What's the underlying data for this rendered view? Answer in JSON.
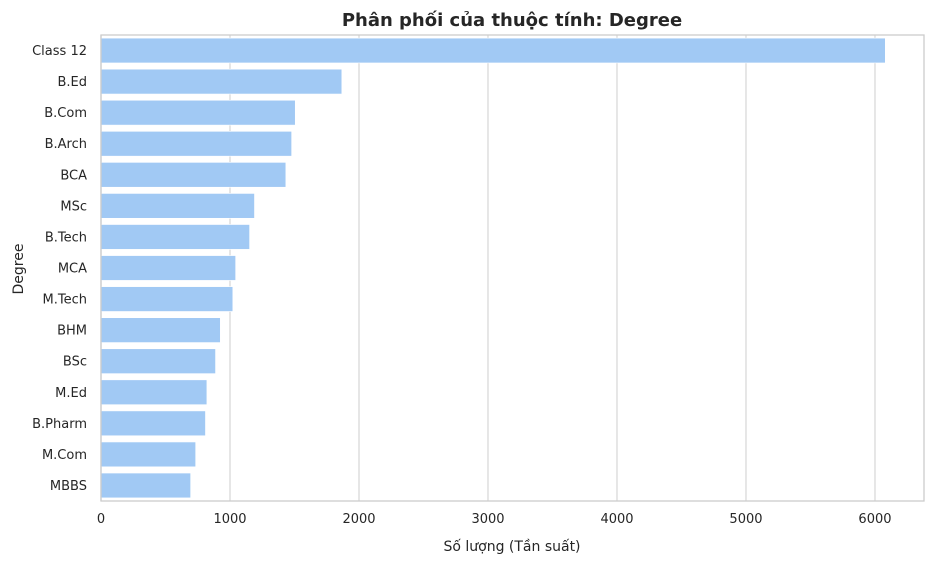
{
  "chart_data": {
    "type": "bar",
    "orientation": "horizontal",
    "title": "Phân phối của thuộc tính: Degree",
    "xlabel": "Số lượng (Tần suất)",
    "ylabel": "Degree",
    "categories": [
      "Class 12",
      "B.Ed",
      "B.Com",
      "B.Arch",
      "BCA",
      "MSc",
      "B.Tech",
      "MCA",
      "M.Tech",
      "BHM",
      "BSc",
      "M.Ed",
      "B.Pharm",
      "M.Com",
      "MBBS"
    ],
    "values": [
      6080,
      1867,
      1506,
      1478,
      1433,
      1190,
      1152,
      1044,
      1022,
      925,
      888,
      821,
      810,
      734,
      695
    ],
    "xlim": [
      0,
      6380
    ],
    "xticks": [
      0,
      1000,
      2000,
      3000,
      4000,
      5000,
      6000
    ],
    "grid": "vertical",
    "bar_color": "#a1c9f4",
    "grid_color": "#d9d9d9",
    "spine_color": "#cccccc"
  }
}
